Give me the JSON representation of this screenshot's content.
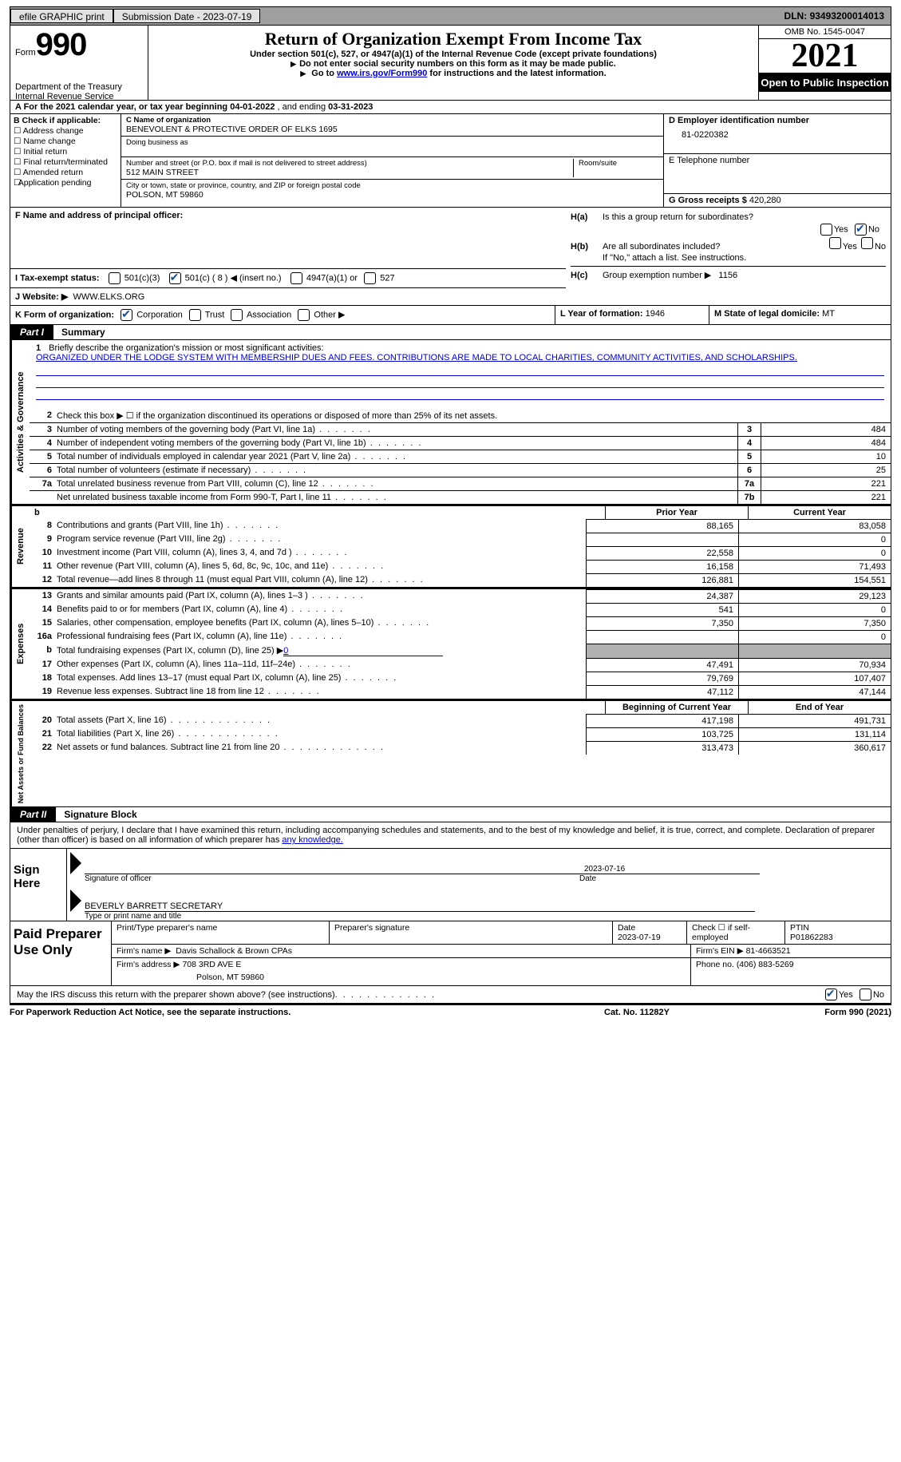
{
  "topbar": {
    "efile": "efile GRAPHIC print",
    "submission": "Submission Date - 2023-07-19",
    "dln_label": "DLN:",
    "dln": "93493200014013"
  },
  "header": {
    "form_word": "Form",
    "form_num": "990",
    "dept": "Department of the Treasury",
    "irs": "Internal Revenue Service",
    "title": "Return of Organization Exempt From Income Tax",
    "sub1": "Under section 501(c), 527, or 4947(a)(1) of the Internal Revenue Code (except private foundations)",
    "sub2": "Do not enter social security numbers on this form as it may be made public.",
    "sub3_pre": "Go to ",
    "sub3_link": "www.irs.gov/Form990",
    "sub3_post": " for instructions and the latest information.",
    "omb": "OMB No. 1545-0047",
    "year": "2021",
    "inspection": "Open to Public Inspection"
  },
  "line_a": {
    "text_a": "A For the 2021 calendar year, or tax year beginning ",
    "begin": "04-01-2022",
    "mid": " , and ending ",
    "end": "03-31-2023"
  },
  "col_b": {
    "title": "B Check if applicable:",
    "opts": [
      "Address change",
      "Name change",
      "Initial return",
      "Final return/terminated",
      "Amended return",
      "Application pending"
    ]
  },
  "col_c": {
    "name_label": "C Name of organization",
    "name": "BENEVOLENT & PROTECTIVE ORDER OF ELKS 1695",
    "dba_label": "Doing business as",
    "street_label": "Number and street (or P.O. box if mail is not delivered to street address)",
    "street": "512 MAIN STREET",
    "room_label": "Room/suite",
    "city_label": "City or town, state or province, country, and ZIP or foreign postal code",
    "city": "POLSON, MT  59860"
  },
  "col_d": {
    "ein_label": "D Employer identification number",
    "ein": "81-0220382",
    "phone_label": "E Telephone number",
    "gross_label": "G Gross receipts $",
    "gross": "420,280"
  },
  "f": {
    "label": "F  Name and address of principal officer:"
  },
  "h": {
    "ha_label": "H(a)",
    "ha_text": "Is this a group return for subordinates?",
    "hb_label": "H(b)",
    "hb_text": "Are all subordinates included?",
    "hb_note": "If \"No,\" attach a list. See instructions.",
    "hc_label": "H(c)",
    "hc_text": "Group exemption number ▶",
    "hc_val": "1156",
    "yes": "Yes",
    "no": "No"
  },
  "i": {
    "label": "I   Tax-exempt status:",
    "opt1": "501(c)(3)",
    "opt2": "501(c) ( 8 ) ◀ (insert no.)",
    "opt3": "4947(a)(1) or",
    "opt4": "527"
  },
  "j": {
    "label": "J   Website: ▶",
    "val": "WWW.ELKS.ORG"
  },
  "k": {
    "label": "K Form of organization:",
    "corp": "Corporation",
    "trust": "Trust",
    "assoc": "Association",
    "other": "Other ▶",
    "l_label": "L Year of formation:",
    "l_val": "1946",
    "m_label": "M State of legal domicile:",
    "m_val": "MT"
  },
  "parts": {
    "p1_num": "Part I",
    "p1_title": "Summary",
    "p2_num": "Part II",
    "p2_title": "Signature Block"
  },
  "vtabs": {
    "ag": "Activities & Governance",
    "rev": "Revenue",
    "exp": "Expenses",
    "net": "Net Assets or Fund Balances"
  },
  "mission": {
    "num": "1",
    "label": "Briefly describe the organization's mission or most significant activities:",
    "text": "ORGANIZED UNDER THE LODGE SYSTEM WITH MEMBERSHIP DUES AND FEES. CONTRIBUTIONS ARE MADE TO LOCAL CHARITIES, COMMUNITY ACTIVITIES, AND SCHOLARSHIPS."
  },
  "summary": {
    "l2": "Check this box ▶ ☐ if the organization discontinued its operations or disposed of more than 25% of its net assets.",
    "rows_ag": [
      {
        "n": "3",
        "d": "Number of voting members of the governing body (Part VI, line 1a)",
        "box": "3",
        "val": "484"
      },
      {
        "n": "4",
        "d": "Number of independent voting members of the governing body (Part VI, line 1b)",
        "box": "4",
        "val": "484"
      },
      {
        "n": "5",
        "d": "Total number of individuals employed in calendar year 2021 (Part V, line 2a)",
        "box": "5",
        "val": "10"
      },
      {
        "n": "6",
        "d": "Total number of volunteers (estimate if necessary)",
        "box": "6",
        "val": "25"
      },
      {
        "n": "7a",
        "d": "Total unrelated business revenue from Part VIII, column (C), line 12",
        "box": "7a",
        "val": "221"
      },
      {
        "n": "",
        "d": "Net unrelated business taxable income from Form 990-T, Part I, line 11",
        "box": "7b",
        "val": "221"
      }
    ],
    "col_headers": {
      "b": "b",
      "prior": "Prior Year",
      "current": "Current Year"
    },
    "rows_rev": [
      {
        "n": "8",
        "d": "Contributions and grants (Part VIII, line 1h)",
        "c1": "88,165",
        "c2": "83,058"
      },
      {
        "n": "9",
        "d": "Program service revenue (Part VIII, line 2g)",
        "c1": "",
        "c2": "0"
      },
      {
        "n": "10",
        "d": "Investment income (Part VIII, column (A), lines 3, 4, and 7d )",
        "c1": "22,558",
        "c2": "0"
      },
      {
        "n": "11",
        "d": "Other revenue (Part VIII, column (A), lines 5, 6d, 8c, 9c, 10c, and 11e)",
        "c1": "16,158",
        "c2": "71,493"
      },
      {
        "n": "12",
        "d": "Total revenue—add lines 8 through 11 (must equal Part VIII, column (A), line 12)",
        "c1": "126,881",
        "c2": "154,551"
      }
    ],
    "rows_exp": [
      {
        "n": "13",
        "d": "Grants and similar amounts paid (Part IX, column (A), lines 1–3 )",
        "c1": "24,387",
        "c2": "29,123"
      },
      {
        "n": "14",
        "d": "Benefits paid to or for members (Part IX, column (A), line 4)",
        "c1": "541",
        "c2": "0"
      },
      {
        "n": "15",
        "d": "Salaries, other compensation, employee benefits (Part IX, column (A), lines 5–10)",
        "c1": "7,350",
        "c2": "7,350"
      },
      {
        "n": "16a",
        "d": "Professional fundraising fees (Part IX, column (A), line 11e)",
        "c1": "",
        "c2": "0"
      },
      {
        "n": "b",
        "d": "Total fundraising expenses (Part IX, column (D), line 25) ▶",
        "val": "0",
        "shaded": true
      },
      {
        "n": "17",
        "d": "Other expenses (Part IX, column (A), lines 11a–11d, 11f–24e)",
        "c1": "47,491",
        "c2": "70,934"
      },
      {
        "n": "18",
        "d": "Total expenses. Add lines 13–17 (must equal Part IX, column (A), line 25)",
        "c1": "79,769",
        "c2": "107,407"
      },
      {
        "n": "19",
        "d": "Revenue less expenses. Subtract line 18 from line 12",
        "c1": "47,112",
        "c2": "47,144"
      }
    ],
    "net_headers": {
      "begin": "Beginning of Current Year",
      "end": "End of Year"
    },
    "rows_net": [
      {
        "n": "20",
        "d": "Total assets (Part X, line 16)",
        "c1": "417,198",
        "c2": "491,731"
      },
      {
        "n": "21",
        "d": "Total liabilities (Part X, line 26)",
        "c1": "103,725",
        "c2": "131,114"
      },
      {
        "n": "22",
        "d": "Net assets or fund balances. Subtract line 21 from line 20",
        "c1": "313,473",
        "c2": "360,617"
      }
    ]
  },
  "sig": {
    "text1": "Under penalties of perjury, I declare that I have examined this return, including accompanying schedules and statements, and to the best of my knowledge and belief, it is true, correct, and complete. Declaration of preparer (other than officer) is based on all information of which preparer has ",
    "text2": "any knowledge.",
    "sign_here": "Sign Here",
    "sig_officer": "Signature of officer",
    "date_label": "Date",
    "date": "2023-07-16",
    "name": "BEVERLY BARRETT SECRETARY",
    "name_label": "Type or print name and title"
  },
  "paid": {
    "title": "Paid Preparer Use Only",
    "h1": "Print/Type preparer's name",
    "h2": "Preparer's signature",
    "h3_label": "Date",
    "h3": "2023-07-19",
    "h4": "Check ☐ if self-employed",
    "h5_label": "PTIN",
    "h5": "P01862283",
    "firm_name_label": "Firm's name    ▶",
    "firm_name": "Davis Schallock & Brown CPAs",
    "firm_ein_label": "Firm's EIN ▶",
    "firm_ein": "81-4663521",
    "firm_addr_label": "Firm's address ▶",
    "firm_addr1": "708 3RD AVE E",
    "firm_addr2": "Polson, MT  59860",
    "phone_label": "Phone no.",
    "phone": "(406) 883-5269"
  },
  "may": {
    "text": "May the IRS discuss this return with the preparer shown above? (see instructions)",
    "yes": "Yes",
    "no": "No"
  },
  "footer": {
    "left": "For Paperwork Reduction Act Notice, see the separate instructions.",
    "mid": "Cat. No. 11282Y",
    "right": "Form 990 (2021)"
  }
}
